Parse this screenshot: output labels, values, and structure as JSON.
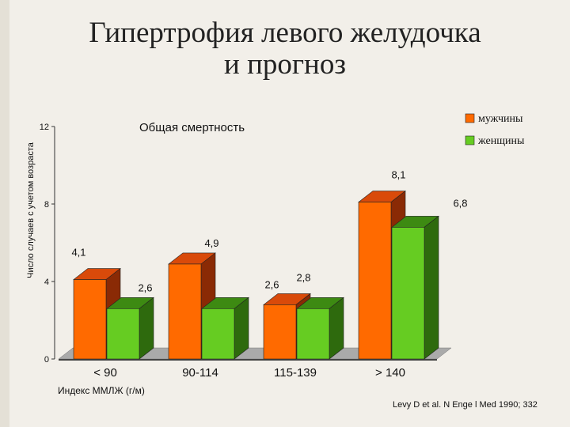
{
  "slide": {
    "title_line1": "Гипертрофия левого желудочка",
    "title_line2": "и прогноз",
    "citation": "Levy D et al. N Enge l Med 1990; 332"
  },
  "colors": {
    "male_front": "#ff6a00",
    "male_top": "#d94a0a",
    "male_side": "#8a2a05",
    "female_front": "#66cc22",
    "female_top": "#3d8a12",
    "female_side": "#2e6a0d",
    "floor_top": "#aaaaaa",
    "floor_front": "#444444"
  },
  "chart_data": {
    "type": "bar",
    "title": "Общая смертность",
    "xlabel": "Индекс ММЛЖ (г/м)",
    "ylabel": "Число случаев с учетом возраста",
    "ylim": [
      0,
      12
    ],
    "yticks": [
      "0",
      "4",
      "8",
      "12"
    ],
    "categories": [
      "< 90",
      "90-114",
      "115-139",
      "> 140"
    ],
    "series": [
      {
        "name": "мужчины",
        "values": [
          4.1,
          4.9,
          2.8,
          8.1
        ],
        "labels": [
          "4,1",
          "4,9",
          "2,8",
          "8,1"
        ]
      },
      {
        "name": "женщины",
        "values": [
          2.6,
          2.6,
          2.6,
          6.8
        ],
        "labels": [
          "2,6",
          "2,6",
          "2,6",
          "6,8"
        ]
      }
    ],
    "legend_position": "top-right",
    "grid": false
  }
}
